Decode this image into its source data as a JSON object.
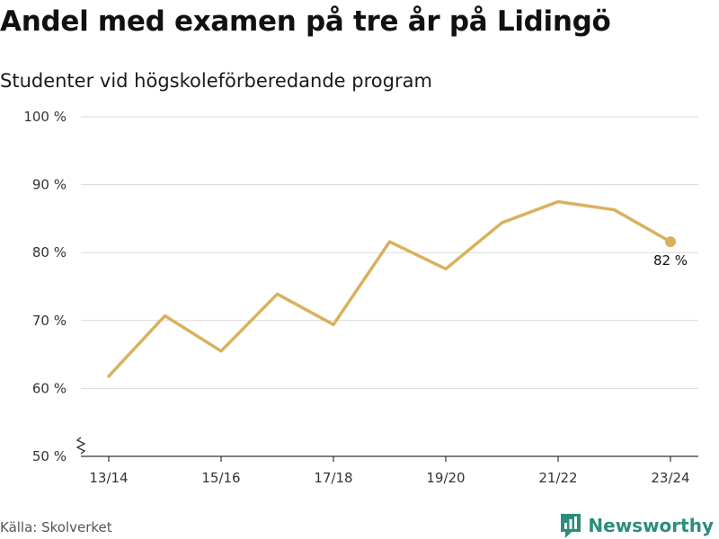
{
  "title": "Andel med examen på tre år på Lidingö",
  "subtitle": "Studenter vid högskoleförberedande program",
  "source": "Källa: Skolverket",
  "brand": {
    "name": "Newsworthy",
    "icon": "newsworthy-logo-icon",
    "color": "#2d8c7c"
  },
  "chart_data": {
    "type": "line",
    "x": [
      "13/14",
      "14/15",
      "15/16",
      "16/17",
      "17/18",
      "18/19",
      "19/20",
      "20/21",
      "21/22",
      "22/23",
      "23/24"
    ],
    "x_tick_labels": [
      "13/14",
      "15/16",
      "17/18",
      "19/20",
      "21/22",
      "23/24"
    ],
    "series": [
      {
        "values": [
          61.8,
          70.7,
          65.5,
          73.9,
          69.4,
          81.6,
          77.6,
          84.4,
          87.5,
          86.3,
          81.6
        ],
        "color": "#d9b15e"
      }
    ],
    "ylim": [
      50,
      100
    ],
    "y_ticks": [
      50,
      60,
      70,
      80,
      90,
      100
    ],
    "y_tick_labels": [
      "50 %",
      "60 %",
      "70 %",
      "80 %",
      "90 %",
      "100 %"
    ],
    "end_label": "82 %",
    "grid": true,
    "axis_break": true
  }
}
